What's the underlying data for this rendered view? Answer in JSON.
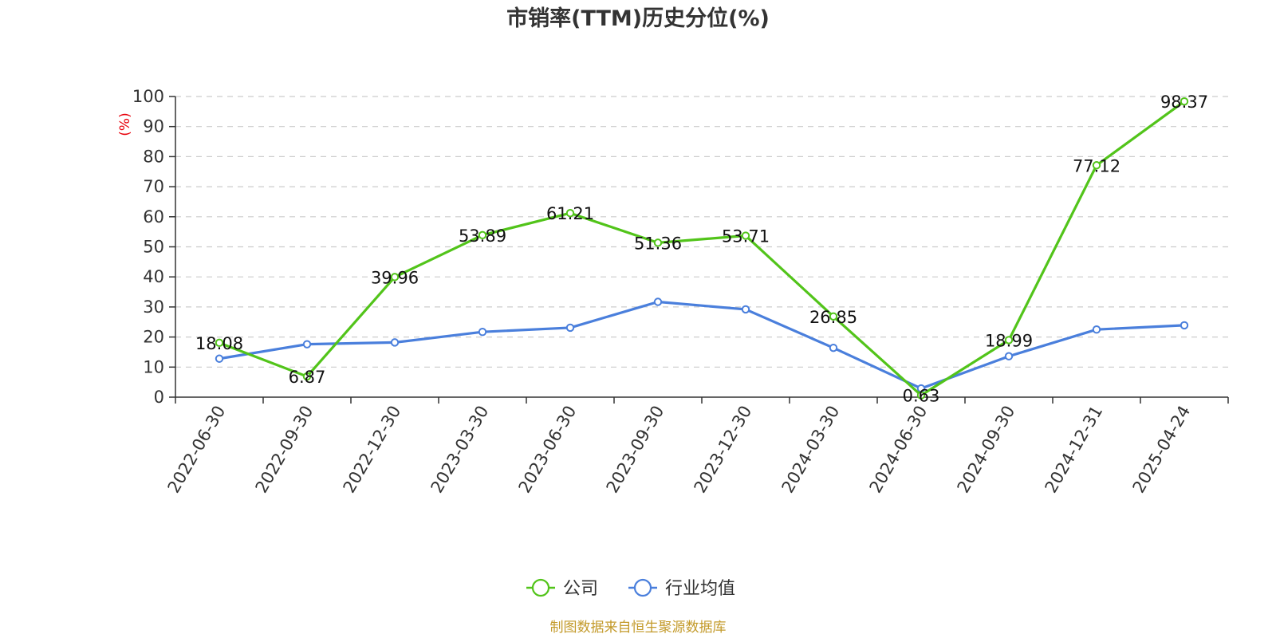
{
  "chart_data": {
    "type": "line",
    "title": "市销率(TTM)历史分位(%)",
    "ylabel": "(%)",
    "ylim": [
      0,
      100
    ],
    "yticks": [
      0,
      10,
      20,
      30,
      40,
      50,
      60,
      70,
      80,
      90,
      100
    ],
    "categories": [
      "2022-06-30",
      "2022-09-30",
      "2022-12-30",
      "2023-03-30",
      "2023-06-30",
      "2023-09-30",
      "2023-12-30",
      "2024-03-30",
      "2024-06-30",
      "2024-09-30",
      "2024-12-31",
      "2025-04-24"
    ],
    "series": [
      {
        "name": "公司",
        "color": "#52c41a",
        "values": [
          18.08,
          6.87,
          39.96,
          53.89,
          61.21,
          51.36,
          53.71,
          26.85,
          0.63,
          18.99,
          77.12,
          98.37
        ],
        "labels": [
          "18.08",
          "6.87",
          "39.96",
          "53.89",
          "61.21",
          "51.36",
          "53.71",
          "26.85",
          "0.63",
          "18.99",
          "77.12",
          "98.37"
        ]
      },
      {
        "name": "行业均值",
        "color": "#4a7fdc",
        "values": [
          12.8,
          17.6,
          18.2,
          21.7,
          23.1,
          31.7,
          29.2,
          16.4,
          2.9,
          13.6,
          22.5,
          23.9
        ]
      }
    ],
    "grid": true,
    "legend": "bottom-center"
  },
  "source": "制图数据来自恒生聚源数据库"
}
